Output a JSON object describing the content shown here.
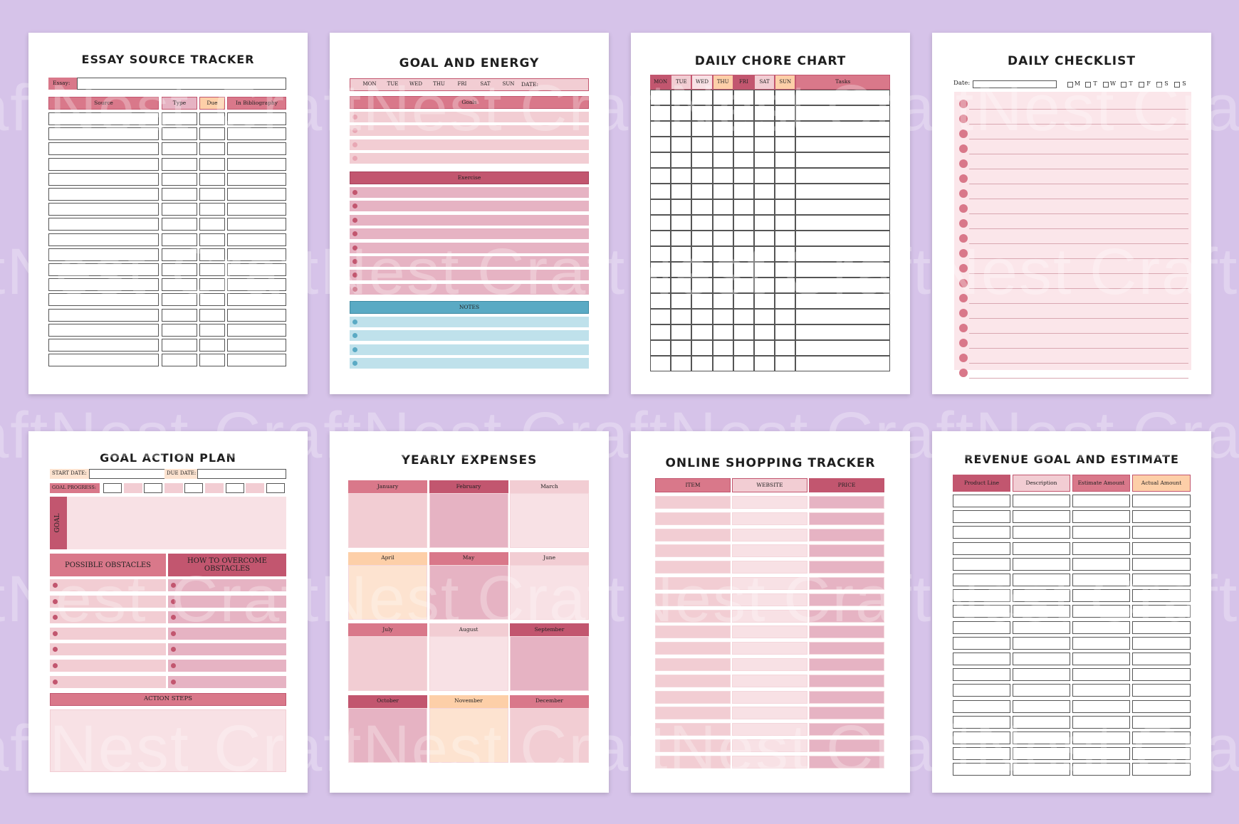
{
  "watermark": "CraftNest",
  "colors": {
    "background": "#d6c3e9",
    "rose_dark": "#c2566f",
    "rose": "#d9788a",
    "pink_mid": "#e6b3c3",
    "pink_light": "#f2cdd3",
    "pink_pale": "#f8e1e5",
    "peach": "#fdcfa8",
    "peach_pale": "#fde3d0",
    "teal": "#5aaac4",
    "teal_light": "#bfe1eb",
    "white": "#ffffff"
  },
  "essay": {
    "title": "ESSAY SOURCE TRACKER",
    "essay_label": "Essay:",
    "columns": [
      "Source",
      "Type",
      "Due",
      "In Bibliography"
    ]
  },
  "goal_energy": {
    "title": "GOAL AND ENERGY",
    "days": [
      "MON",
      "TUE",
      "WED",
      "THU",
      "FRI",
      "SAT",
      "SUN"
    ],
    "date_label": "DATE:",
    "goals": "Goals",
    "exercise": "Exercise",
    "notes": "NOTES"
  },
  "chore": {
    "title": "DAILY CHORE CHART",
    "days": [
      "MON",
      "TUE",
      "WED",
      "THU",
      "FRI",
      "SAT",
      "SUN"
    ],
    "tasks": "Tasks"
  },
  "checklist": {
    "title": "DAILY CHECKLIST",
    "date_label": "Date:",
    "days": [
      "M",
      "T",
      "W",
      "T",
      "F",
      "S",
      "S"
    ]
  },
  "action": {
    "title": "GOAL ACTION PLAN",
    "start_date": "START DATE:",
    "due_date": "DUE DATE:",
    "progress": "GOAL PROGRESS:",
    "goal": "GOAL",
    "obstacles": "POSSIBLE OBSTACLES",
    "overcome": "HOW TO OVERCOME OBSTACLES",
    "steps": "ACTION STEPS"
  },
  "yearly": {
    "title": "YEARLY EXPENSES",
    "months": [
      "January",
      "February",
      "March",
      "April",
      "May",
      "June",
      "July",
      "August",
      "September",
      "October",
      "November",
      "December"
    ]
  },
  "shopping": {
    "title": "ONLINE SHOPPING TRACKER",
    "columns": [
      "ITEM",
      "WEBSITE",
      "PRICE"
    ]
  },
  "revenue": {
    "title": "REVENUE GOAL AND ESTIMATE",
    "columns": [
      "Product Line",
      "Description",
      "Estimate Amount",
      "Actual Amount"
    ]
  }
}
